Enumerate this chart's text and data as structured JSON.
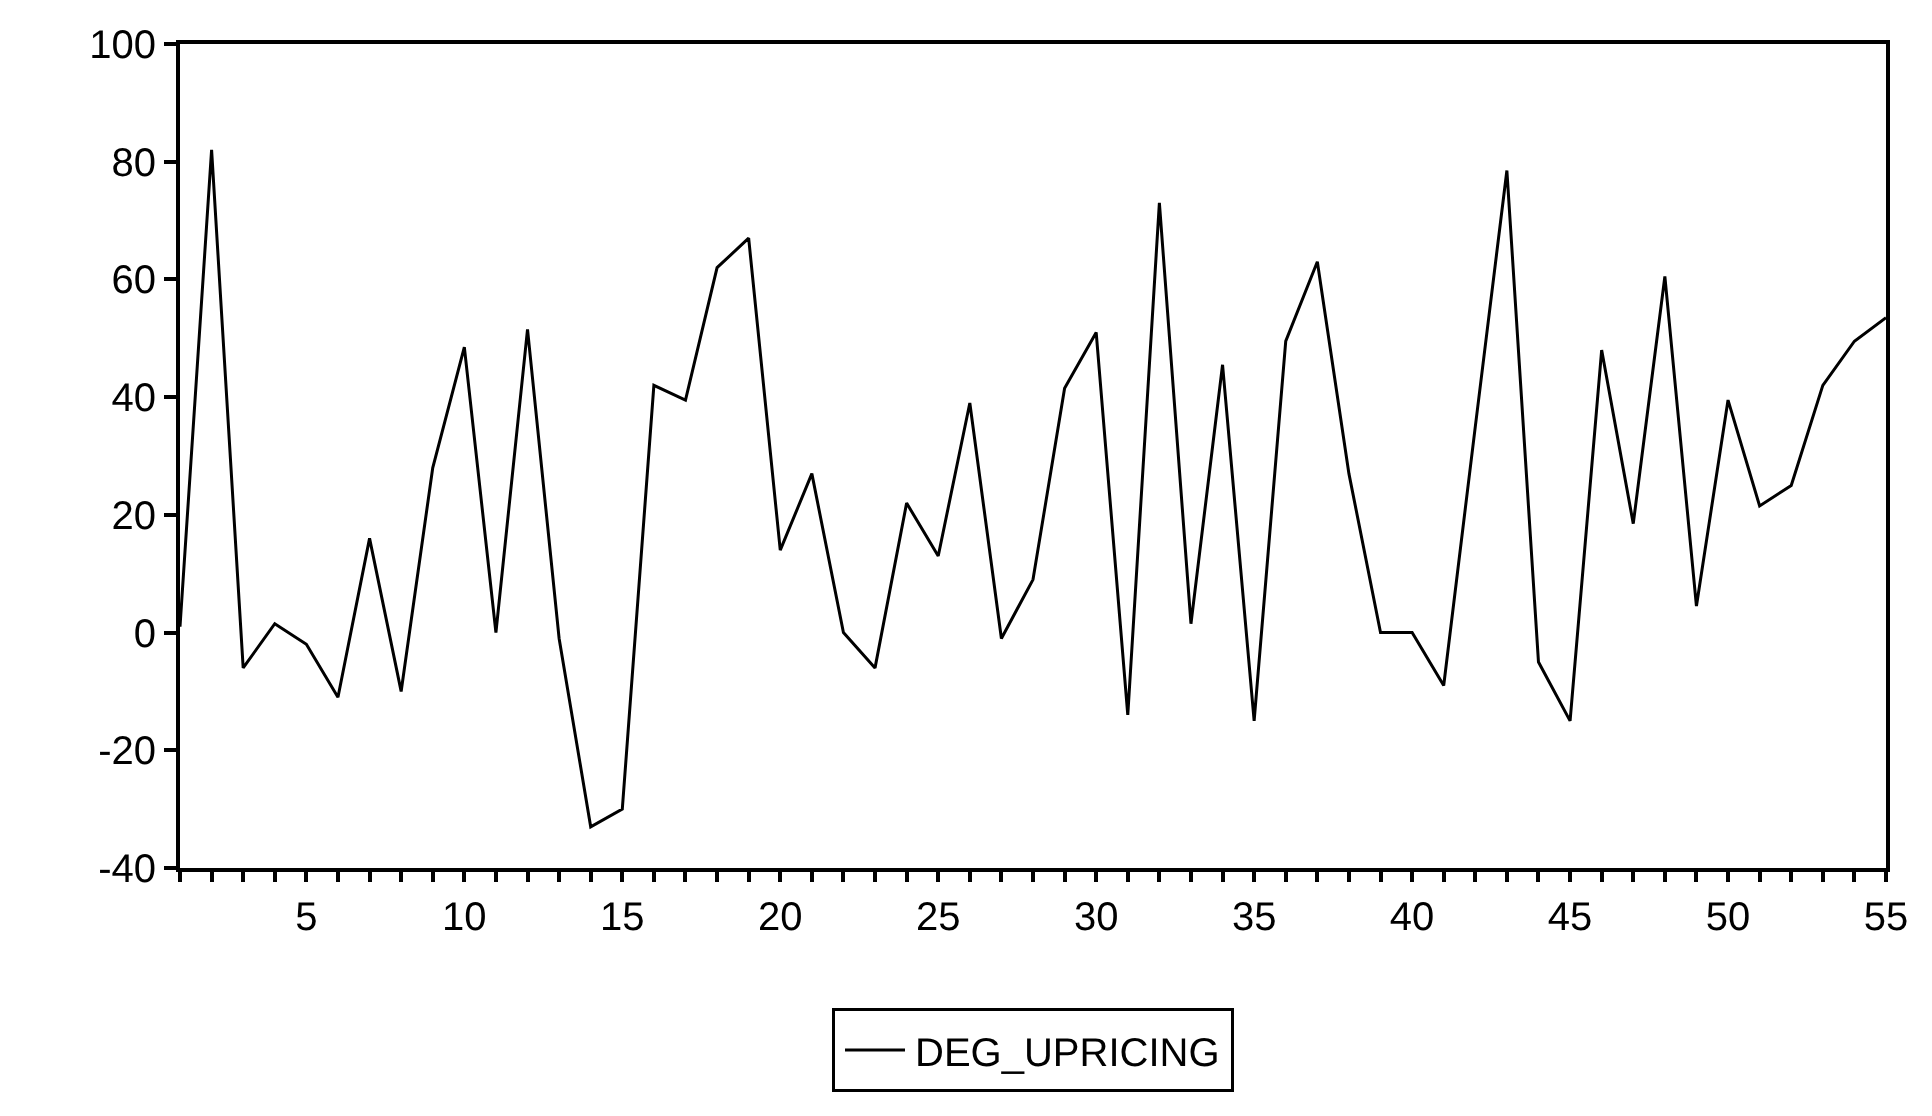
{
  "chart_data": {
    "type": "line",
    "x": [
      1,
      2,
      3,
      4,
      5,
      6,
      7,
      8,
      9,
      10,
      11,
      12,
      13,
      14,
      15,
      16,
      17,
      18,
      19,
      20,
      21,
      22,
      23,
      24,
      25,
      26,
      27,
      28,
      29,
      30,
      31,
      32,
      33,
      34,
      35,
      36,
      37,
      38,
      39,
      40,
      41,
      42,
      43,
      44,
      45,
      46,
      47,
      48,
      49,
      50,
      51,
      52,
      53,
      54,
      55
    ],
    "series": [
      {
        "name": "DEG_UPRICING",
        "color": "#000000",
        "values": [
          1,
          82,
          -6,
          1.5,
          -2,
          -11,
          16,
          -10,
          28,
          48.5,
          0,
          51.5,
          -1,
          -33,
          -30,
          42,
          39.5,
          62,
          67,
          14,
          27,
          0,
          -6,
          22,
          13,
          39,
          -1,
          9,
          41.5,
          51,
          -14,
          73,
          1.5,
          45.5,
          -15,
          49.5,
          63,
          27,
          0,
          0,
          -9,
          35,
          78.5,
          -5,
          -15,
          48,
          18.5,
          60.5,
          4.5,
          39.5,
          21.5,
          25,
          42,
          49.5,
          53.5
        ]
      }
    ],
    "xlim": [
      1,
      55
    ],
    "xticks": [
      {
        "value": 1,
        "label": null
      },
      {
        "value": 2,
        "label": null
      },
      {
        "value": 3,
        "label": null
      },
      {
        "value": 4,
        "label": null
      },
      5,
      {
        "value": 6,
        "label": null
      },
      {
        "value": 7,
        "label": null
      },
      {
        "value": 8,
        "label": null
      },
      {
        "value": 9,
        "label": null
      },
      10,
      {
        "value": 11,
        "label": null
      },
      {
        "value": 12,
        "label": null
      },
      {
        "value": 13,
        "label": null
      },
      {
        "value": 14,
        "label": null
      },
      15,
      {
        "value": 16,
        "label": null
      },
      {
        "value": 17,
        "label": null
      },
      {
        "value": 18,
        "label": null
      },
      {
        "value": 19,
        "label": null
      },
      20,
      {
        "value": 21,
        "label": null
      },
      {
        "value": 22,
        "label": null
      },
      {
        "value": 23,
        "label": null
      },
      {
        "value": 24,
        "label": null
      },
      25,
      {
        "value": 26,
        "label": null
      },
      {
        "value": 27,
        "label": null
      },
      {
        "value": 28,
        "label": null
      },
      {
        "value": 29,
        "label": null
      },
      30,
      {
        "value": 31,
        "label": null
      },
      {
        "value": 32,
        "label": null
      },
      {
        "value": 33,
        "label": null
      },
      {
        "value": 34,
        "label": null
      },
      35,
      {
        "value": 36,
        "label": null
      },
      {
        "value": 37,
        "label": null
      },
      {
        "value": 38,
        "label": null
      },
      {
        "value": 39,
        "label": null
      },
      40,
      {
        "value": 41,
        "label": null
      },
      {
        "value": 42,
        "label": null
      },
      {
        "value": 43,
        "label": null
      },
      {
        "value": 44,
        "label": null
      },
      45,
      {
        "value": 46,
        "label": null
      },
      {
        "value": 47,
        "label": null
      },
      {
        "value": 48,
        "label": null
      },
      {
        "value": 49,
        "label": null
      },
      50,
      {
        "value": 51,
        "label": null
      },
      {
        "value": 52,
        "label": null
      },
      {
        "value": 53,
        "label": null
      },
      {
        "value": 54,
        "label": null
      },
      55
    ],
    "ylim": [
      -40,
      100
    ],
    "yticks": [
      -40,
      -20,
      0,
      20,
      40,
      60,
      80,
      100
    ],
    "legend": "bottom",
    "marker": "none",
    "line_style": "solid"
  }
}
